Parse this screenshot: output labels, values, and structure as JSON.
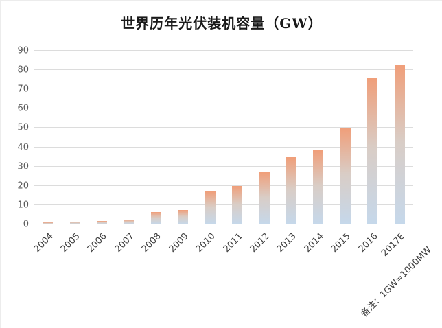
{
  "note": "备注：1GW=1000MW",
  "chart_data": {
    "type": "bar",
    "title": "世界历年光伏装机容量（GW）",
    "categories": [
      "2004",
      "2005",
      "2006",
      "2007",
      "2008",
      "2009",
      "2010",
      "2011",
      "2012",
      "2013",
      "2014",
      "2015",
      "2016",
      "2017E"
    ],
    "values": [
      1,
      1.4,
      1.7,
      2.5,
      6.5,
      7.5,
      17,
      20,
      27,
      35,
      38.5,
      50,
      76,
      83
    ],
    "xlabel": "",
    "ylabel": "",
    "ylim": [
      0,
      90
    ],
    "yticks": [
      0,
      10,
      20,
      30,
      40,
      50,
      60,
      70,
      80,
      90
    ],
    "grid": true,
    "legend": false,
    "annotation": "备注：1GW=1000MW",
    "bar_color_top": "#f09e79",
    "bar_color_mid": "#d9cdc6",
    "bar_color_bottom": "#c5d8eb",
    "gridline_color": "#dcdcdc"
  }
}
